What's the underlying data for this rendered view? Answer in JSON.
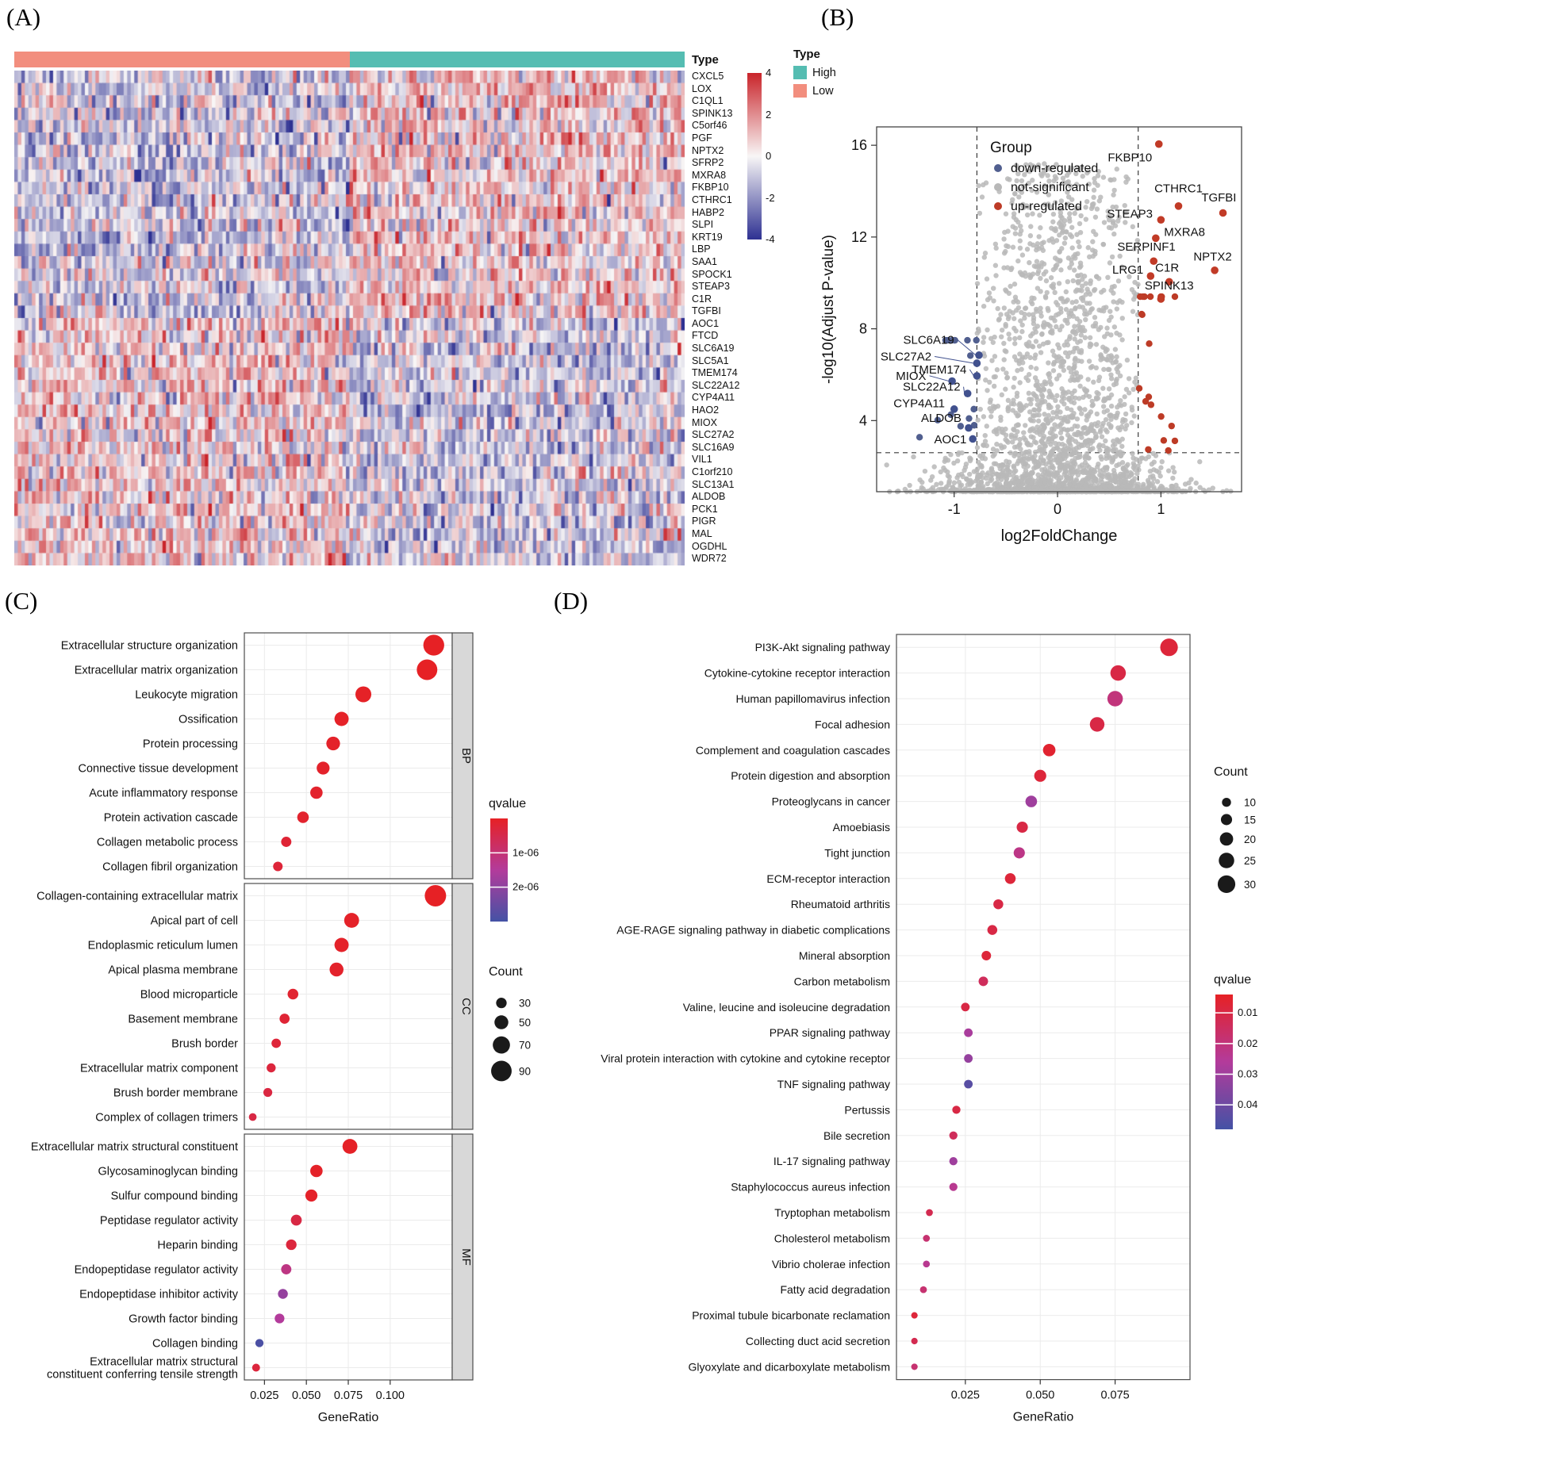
{
  "panels": {
    "a": "(A)",
    "b": "(B)",
    "c": "(C)",
    "d": "(D)"
  },
  "chart_data": [
    {
      "type": "heatmap",
      "panel": "A",
      "annotation_title": "Type",
      "legend_title": "Type",
      "groups": [
        {
          "label": "High",
          "color": "#55bdb2",
          "fraction": 0.5
        },
        {
          "label": "Low",
          "color": "#f28e7e",
          "fraction": 0.5
        }
      ],
      "genes": [
        "CXCL5",
        "LOX",
        "C1QL1",
        "SPINK13",
        "C5orf46",
        "PGF",
        "NPTX2",
        "SFRP2",
        "MXRA8",
        "FKBP10",
        "CTHRC1",
        "HABP2",
        "SLPI",
        "KRT19",
        "LBP",
        "SAA1",
        "SPOCK1",
        "STEAP3",
        "C1R",
        "TGFBI",
        "AOC1",
        "FTCD",
        "SLC6A19",
        "SLC5A1",
        "TMEM174",
        "SLC22A12",
        "CYP4A11",
        "HAO2",
        "MIOX",
        "SLC27A2",
        "SLC16A9",
        "VIL1",
        "C1orf210",
        "SLC13A1",
        "ALDOB",
        "PCK1",
        "PIGR",
        "MAL",
        "OGDHL",
        "WDR72"
      ],
      "up_gene_count": 20,
      "colorbar_ticks": [
        4,
        2,
        0,
        -2,
        -4
      ],
      "colors": {
        "max": "#c9242a",
        "mid": "#f8f6f6",
        "min": "#2e3192"
      }
    },
    {
      "type": "scatter",
      "panel": "B",
      "xlabel": "log2FoldChange",
      "ylabel": "-log10(Adjust P-value)",
      "xlim": [
        -1.75,
        1.78
      ],
      "ylim": [
        0.9,
        16.8
      ],
      "xticks": [
        -1,
        0,
        1
      ],
      "yticks": [
        4,
        8,
        12,
        16
      ],
      "vlines": [
        -0.78,
        0.78
      ],
      "hline": 2.6,
      "legend": {
        "title": "Group",
        "items": [
          {
            "label": "down-regulated",
            "color": "#515f8f"
          },
          {
            "label": "not-significant",
            "color": "#b8b8b8"
          },
          {
            "label": "up-regulated",
            "color": "#bd3b26"
          }
        ]
      },
      "up_labeled": [
        {
          "gene": "FKBP10",
          "x": 0.98,
          "y": 16.05,
          "lx": 0.7,
          "ly": 15.3,
          "anchor": "middle",
          "line": false
        },
        {
          "gene": "CTHRC1",
          "x": 1.17,
          "y": 13.35,
          "lx": 1.17,
          "ly": 13.95,
          "anchor": "middle",
          "line": false
        },
        {
          "gene": "TGFBI",
          "x": 1.6,
          "y": 13.05,
          "lx": 1.73,
          "ly": 13.55,
          "anchor": "end",
          "line": false
        },
        {
          "gene": "STEAP3",
          "x": 1.0,
          "y": 12.75,
          "lx": 0.92,
          "ly": 12.85,
          "anchor": "end",
          "line": false
        },
        {
          "gene": "MXRA8",
          "x": 0.95,
          "y": 11.95,
          "lx": 1.03,
          "ly": 12.05,
          "anchor": "start",
          "line": false
        },
        {
          "gene": "SERPINF1",
          "x": 0.93,
          "y": 10.95,
          "lx": 0.86,
          "ly": 11.4,
          "anchor": "middle",
          "line": false
        },
        {
          "gene": "LRG1",
          "x": 0.9,
          "y": 10.3,
          "lx": 0.83,
          "ly": 10.4,
          "anchor": "end",
          "line": false
        },
        {
          "gene": "C1R",
          "x": 1.08,
          "y": 10.05,
          "lx": 1.06,
          "ly": 10.5,
          "anchor": "middle",
          "line": false
        },
        {
          "gene": "NPTX2",
          "x": 1.52,
          "y": 10.55,
          "lx": 1.5,
          "ly": 10.98,
          "anchor": "middle",
          "line": false
        },
        {
          "gene": "SPINK13",
          "x": 1.0,
          "y": 9.3,
          "lx": 1.08,
          "ly": 9.72,
          "anchor": "middle",
          "line": false
        }
      ],
      "down_labeled": [
        {
          "gene": "SLC6A19",
          "x": -0.76,
          "y": 6.85,
          "lx": -1.0,
          "ly": 7.35,
          "anchor": "end",
          "line": true
        },
        {
          "gene": "SLC27A2",
          "x": -0.78,
          "y": 6.5,
          "lx": -1.22,
          "ly": 6.62,
          "anchor": "end",
          "line": true
        },
        {
          "gene": "TMEM174",
          "x": -0.78,
          "y": 5.95,
          "lx": -0.88,
          "ly": 6.05,
          "anchor": "end",
          "line": true
        },
        {
          "gene": "MIOX",
          "x": -1.02,
          "y": 5.72,
          "lx": -1.27,
          "ly": 5.78,
          "anchor": "end",
          "line": true
        },
        {
          "gene": "SLC22A12",
          "x": -0.87,
          "y": 5.18,
          "lx": -0.94,
          "ly": 5.3,
          "anchor": "end",
          "line": true
        },
        {
          "gene": "CYP4A11",
          "x": -1.0,
          "y": 4.5,
          "lx": -1.09,
          "ly": 4.58,
          "anchor": "end",
          "line": false
        },
        {
          "gene": "ALDOB",
          "x": -0.86,
          "y": 3.68,
          "lx": -0.93,
          "ly": 3.95,
          "anchor": "end",
          "line": false
        },
        {
          "gene": "AOC1",
          "x": -0.82,
          "y": 3.2,
          "lx": -0.88,
          "ly": 3.0,
          "anchor": "end",
          "line": false
        }
      ]
    },
    {
      "type": "dot",
      "panel": "C",
      "xlabel": "GeneRatio",
      "xlim": [
        0.013,
        0.137
      ],
      "xticks": [
        0.025,
        0.05,
        0.075,
        0.1
      ],
      "gradient": [
        "#e62125",
        "#b33b9b",
        "#4452a5"
      ],
      "qvalue_legend": {
        "title": "qvalue",
        "max": 3e-06,
        "ticks": [
          {
            "label": "1e-06",
            "value": 1e-06
          },
          {
            "label": "2e-06",
            "value": 2e-06
          }
        ]
      },
      "count_legend": {
        "title": "Count",
        "items": [
          30,
          50,
          70,
          90
        ]
      },
      "facets": [
        {
          "label": "BP",
          "rows": [
            {
              "term": "Extracellular structure organization",
              "ratio": 0.126,
              "count": 92,
              "qvalue": 5e-09
            },
            {
              "term": "Extracellular matrix organization",
              "ratio": 0.122,
              "count": 90,
              "qvalue": 5e-09
            },
            {
              "term": "Leukocyte migration",
              "ratio": 0.084,
              "count": 62,
              "qvalue": 3e-08
            },
            {
              "term": "Ossification",
              "ratio": 0.071,
              "count": 52,
              "qvalue": 4e-08
            },
            {
              "term": "Protein processing",
              "ratio": 0.066,
              "count": 49,
              "qvalue": 6e-08
            },
            {
              "term": "Connective tissue development",
              "ratio": 0.06,
              "count": 44,
              "qvalue": 8e-08
            },
            {
              "term": "Acute inflammatory response",
              "ratio": 0.056,
              "count": 41,
              "qvalue": 1e-07
            },
            {
              "term": "Protein activation cascade",
              "ratio": 0.048,
              "count": 36,
              "qvalue": 1.2e-07
            },
            {
              "term": "Collagen metabolic process",
              "ratio": 0.038,
              "count": 28,
              "qvalue": 2e-07
            },
            {
              "term": "Collagen fibril organization",
              "ratio": 0.033,
              "count": 24,
              "qvalue": 2.5e-07
            }
          ]
        },
        {
          "label": "CC",
          "rows": [
            {
              "term": "Collagen-containing extracellular matrix",
              "ratio": 0.127,
              "count": 95,
              "qvalue": 1e-09
            },
            {
              "term": "Apical part of cell",
              "ratio": 0.077,
              "count": 56,
              "qvalue": 5e-08
            },
            {
              "term": "Endoplasmic reticulum lumen",
              "ratio": 0.071,
              "count": 52,
              "qvalue": 6e-08
            },
            {
              "term": "Apical plasma membrane",
              "ratio": 0.068,
              "count": 50,
              "qvalue": 8e-08
            },
            {
              "term": "Blood microparticle",
              "ratio": 0.042,
              "count": 31,
              "qvalue": 1.5e-07
            },
            {
              "term": "Basement membrane",
              "ratio": 0.037,
              "count": 27,
              "qvalue": 2e-07
            },
            {
              "term": "Brush border",
              "ratio": 0.032,
              "count": 23,
              "qvalue": 2.5e-07
            },
            {
              "term": "Extracellular matrix component",
              "ratio": 0.029,
              "count": 21,
              "qvalue": 3e-07
            },
            {
              "term": "Brush border membrane",
              "ratio": 0.027,
              "count": 20,
              "qvalue": 3.5e-07
            },
            {
              "term": "Complex of collagen trimers",
              "ratio": 0.018,
              "count": 13,
              "qvalue": 4e-07
            }
          ]
        },
        {
          "label": "MF",
          "rows": [
            {
              "term": "Extracellular matrix structural constituent",
              "ratio": 0.076,
              "count": 56,
              "qvalue": 2e-08
            },
            {
              "term": "Glycosaminoglycan binding",
              "ratio": 0.056,
              "count": 41,
              "qvalue": 5e-08
            },
            {
              "term": "Sulfur compound binding",
              "ratio": 0.053,
              "count": 39,
              "qvalue": 6e-08
            },
            {
              "term": "Peptidase regulator activity",
              "ratio": 0.044,
              "count": 32,
              "qvalue": 4e-07
            },
            {
              "term": "Heparin binding",
              "ratio": 0.041,
              "count": 30,
              "qvalue": 3e-07
            },
            {
              "term": "Endopeptidase regulator activity",
              "ratio": 0.038,
              "count": 28,
              "qvalue": 1.2e-06
            },
            {
              "term": "Endopeptidase inhibitor activity",
              "ratio": 0.036,
              "count": 26,
              "qvalue": 1.9e-06
            },
            {
              "term": "Growth factor binding",
              "ratio": 0.034,
              "count": 25,
              "qvalue": 1.5e-06
            },
            {
              "term": "Collagen binding",
              "ratio": 0.022,
              "count": 16,
              "qvalue": 2.9e-06
            },
            {
              "term": "Extracellular matrix structural\nconstituent conferring tensile strength",
              "ratio": 0.02,
              "count": 14,
              "qvalue": 3e-07
            }
          ]
        }
      ]
    },
    {
      "type": "dot",
      "panel": "D",
      "xlabel": "GeneRatio",
      "xlim": [
        0.002,
        0.1
      ],
      "xticks": [
        0.025,
        0.05,
        0.075
      ],
      "gradient": [
        "#e62125",
        "#b33b9b",
        "#4452a5"
      ],
      "count_legend": {
        "title": "Count",
        "items": [
          10,
          15,
          20,
          25,
          30
        ]
      },
      "qvalue_legend": {
        "title": "qvalue",
        "min": 0.004,
        "max": 0.048,
        "ticks": [
          {
            "label": "0.01",
            "value": 0.01
          },
          {
            "label": "0.02",
            "value": 0.02
          },
          {
            "label": "0.03",
            "value": 0.03
          },
          {
            "label": "0.04",
            "value": 0.04
          }
        ]
      },
      "rows": [
        {
          "term": "PI3K-Akt signaling pathway",
          "ratio": 0.093,
          "count": 30,
          "qvalue": 0.008
        },
        {
          "term": "Cytokine-cytokine receptor interaction",
          "ratio": 0.076,
          "count": 25,
          "qvalue": 0.01
        },
        {
          "term": "Human papillomavirus infection",
          "ratio": 0.075,
          "count": 25,
          "qvalue": 0.02
        },
        {
          "term": "Focal adhesion",
          "ratio": 0.069,
          "count": 23,
          "qvalue": 0.01
        },
        {
          "term": "Complement and coagulation cascades",
          "ratio": 0.053,
          "count": 18,
          "qvalue": 0.006
        },
        {
          "term": "Protein digestion and absorption",
          "ratio": 0.05,
          "count": 17,
          "qvalue": 0.008
        },
        {
          "term": "Proteoglycans in cancer",
          "ratio": 0.047,
          "count": 16,
          "qvalue": 0.03
        },
        {
          "term": "Amoebiasis",
          "ratio": 0.044,
          "count": 15,
          "qvalue": 0.01
        },
        {
          "term": "Tight junction",
          "ratio": 0.043,
          "count": 15,
          "qvalue": 0.022
        },
        {
          "term": "ECM-receptor interaction",
          "ratio": 0.04,
          "count": 14,
          "qvalue": 0.008
        },
        {
          "term": "Rheumatoid arthritis",
          "ratio": 0.036,
          "count": 12,
          "qvalue": 0.01
        },
        {
          "term": "AGE-RAGE signaling pathway in diabetic complications",
          "ratio": 0.034,
          "count": 12,
          "qvalue": 0.01
        },
        {
          "term": "Mineral absorption",
          "ratio": 0.032,
          "count": 11,
          "qvalue": 0.008
        },
        {
          "term": "Carbon metabolism",
          "ratio": 0.031,
          "count": 11,
          "qvalue": 0.014
        },
        {
          "term": "Valine, leucine and isoleucine degradation",
          "ratio": 0.025,
          "count": 9,
          "qvalue": 0.01
        },
        {
          "term": "PPAR signaling pathway",
          "ratio": 0.026,
          "count": 9,
          "qvalue": 0.028
        },
        {
          "term": "Viral protein interaction with cytokine and cytokine receptor",
          "ratio": 0.026,
          "count": 9,
          "qvalue": 0.032
        },
        {
          "term": "TNF signaling pathway",
          "ratio": 0.026,
          "count": 9,
          "qvalue": 0.044
        },
        {
          "term": "Pertussis",
          "ratio": 0.022,
          "count": 8,
          "qvalue": 0.01
        },
        {
          "term": "Bile secretion",
          "ratio": 0.021,
          "count": 8,
          "qvalue": 0.014
        },
        {
          "term": "IL-17 signaling pathway",
          "ratio": 0.021,
          "count": 8,
          "qvalue": 0.03
        },
        {
          "term": "Staphylococcus aureus infection",
          "ratio": 0.021,
          "count": 8,
          "qvalue": 0.024
        },
        {
          "term": "Tryptophan metabolism",
          "ratio": 0.013,
          "count": 5,
          "qvalue": 0.012
        },
        {
          "term": "Cholesterol metabolism",
          "ratio": 0.012,
          "count": 5,
          "qvalue": 0.018
        },
        {
          "term": "Vibrio cholerae infection",
          "ratio": 0.012,
          "count": 5,
          "qvalue": 0.024
        },
        {
          "term": "Fatty acid degradation",
          "ratio": 0.011,
          "count": 5,
          "qvalue": 0.018
        },
        {
          "term": "Proximal tubule bicarbonate reclamation",
          "ratio": 0.008,
          "count": 4,
          "qvalue": 0.008
        },
        {
          "term": "Collecting duct acid secretion",
          "ratio": 0.008,
          "count": 4,
          "qvalue": 0.012
        },
        {
          "term": "Glyoxylate and dicarboxylate metabolism",
          "ratio": 0.008,
          "count": 4,
          "qvalue": 0.018
        }
      ]
    }
  ]
}
